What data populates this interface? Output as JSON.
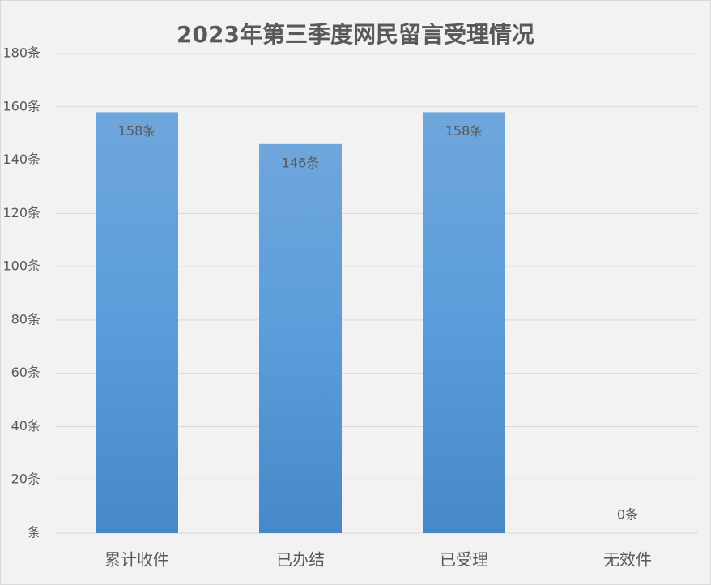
{
  "chart_data": {
    "type": "bar",
    "title": "2023年第三季度网民留言受理情况",
    "categories": [
      "累计收件",
      "已办结",
      "已受理",
      "无效件"
    ],
    "values": [
      158,
      146,
      158,
      0
    ],
    "value_labels": [
      "158条",
      "146条",
      "158条",
      "0条"
    ],
    "color": "#5b9bd5",
    "ylim": [
      0,
      180
    ],
    "yticks": [
      {
        "value": 0,
        "label": "条"
      },
      {
        "value": 20,
        "label": "20条"
      },
      {
        "value": 40,
        "label": "40条"
      },
      {
        "value": 60,
        "label": "60条"
      },
      {
        "value": 80,
        "label": "80条"
      },
      {
        "value": 100,
        "label": "100条"
      },
      {
        "value": 120,
        "label": "120条"
      },
      {
        "value": 140,
        "label": "140条"
      },
      {
        "value": 160,
        "label": "160条"
      },
      {
        "value": 180,
        "label": "180条"
      }
    ],
    "grid": true
  }
}
